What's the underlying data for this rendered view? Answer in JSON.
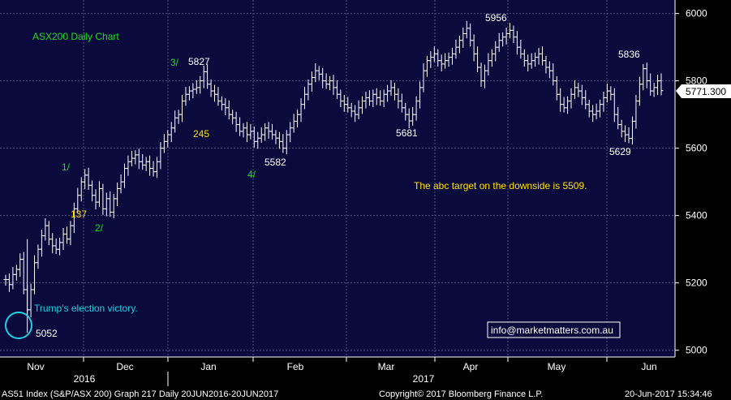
{
  "chart_data": {
    "type": "ohlc",
    "title": "ASX200 Daily Chart",
    "ylim": [
      4980,
      6040
    ],
    "y_ticks": [
      5000,
      5200,
      5400,
      5600,
      5800,
      6000
    ],
    "grid": true,
    "last_price": "5771.300",
    "x_month_labels": [
      "Nov",
      "Dec",
      "Jan",
      "Feb",
      "Mar",
      "Apr",
      "May",
      "Jun"
    ],
    "x_year_labels": [
      "2016",
      "2017"
    ],
    "close_series": [
      5210,
      5195,
      5225,
      5240,
      5270,
      5180,
      5120,
      5180,
      5260,
      5300,
      5340,
      5370,
      5330,
      5310,
      5300,
      5320,
      5345,
      5330,
      5370,
      5420,
      5460,
      5500,
      5520,
      5490,
      5460,
      5440,
      5480,
      5420,
      5450,
      5410,
      5450,
      5480,
      5500,
      5540,
      5560,
      5570,
      5580,
      5560,
      5550,
      5560,
      5540,
      5530,
      5560,
      5600,
      5620,
      5640,
      5660,
      5690,
      5700,
      5740,
      5760,
      5770,
      5775,
      5780,
      5800,
      5827,
      5790,
      5770,
      5760,
      5740,
      5730,
      5720,
      5700,
      5690,
      5670,
      5650,
      5660,
      5640,
      5650,
      5620,
      5630,
      5640,
      5660,
      5650,
      5640,
      5630,
      5620,
      5600,
      5640,
      5660,
      5680,
      5700,
      5730,
      5760,
      5790,
      5810,
      5830,
      5820,
      5800,
      5790,
      5800,
      5780,
      5760,
      5740,
      5730,
      5720,
      5710,
      5700,
      5720,
      5740,
      5750,
      5740,
      5760,
      5750,
      5740,
      5760,
      5770,
      5780,
      5760,
      5740,
      5720,
      5700,
      5681,
      5700,
      5740,
      5780,
      5830,
      5860,
      5870,
      5880,
      5860,
      5850,
      5860,
      5870,
      5880,
      5900,
      5920,
      5940,
      5956,
      5920,
      5880,
      5840,
      5800,
      5830,
      5860,
      5880,
      5900,
      5920,
      5930,
      5940,
      5950,
      5930,
      5900,
      5880,
      5860,
      5850,
      5860,
      5870,
      5880,
      5860,
      5840,
      5830,
      5800,
      5760,
      5730,
      5720,
      5740,
      5760,
      5780,
      5770,
      5750,
      5730,
      5710,
      5700,
      5710,
      5730,
      5750,
      5770,
      5760,
      5700,
      5670,
      5650,
      5640,
      5629,
      5680,
      5740,
      5790,
      5836,
      5800,
      5770,
      5780,
      5800,
      5771
    ],
    "annotations": [
      {
        "text": "5052",
        "color": "#ffffff"
      },
      {
        "text": "1/",
        "color": "#22dd22"
      },
      {
        "text": "137",
        "color": "#ffe000"
      },
      {
        "text": "2/",
        "color": "#22dd22"
      },
      {
        "text": "3/",
        "color": "#22dd22"
      },
      {
        "text": "5827",
        "color": "#ffffff"
      },
      {
        "text": "245",
        "color": "#ffe000"
      },
      {
        "text": "5582",
        "color": "#ffffff"
      },
      {
        "text": "4/",
        "color": "#22dd22"
      },
      {
        "text": "5681",
        "color": "#ffffff"
      },
      {
        "text": "5956",
        "color": "#ffffff"
      },
      {
        "text": "5836",
        "color": "#ffffff"
      },
      {
        "text": "5629",
        "color": "#ffffff"
      },
      {
        "text": "The abc target on the downside is 5509.",
        "color": "#ffe000"
      },
      {
        "text": "Trump's election victory.",
        "color": "#22d0e0"
      },
      {
        "text": "info@marketmatters.com.au",
        "color": "#ffffff"
      }
    ],
    "footer": {
      "left": "AS51 Index (S&P/ASX 200) Graph 217  Daily 20JUN2016-20JUN2017",
      "center": "Copyright© 2017 Bloomberg Finance L.P.",
      "right": "20-Jun-2017 15:34:46"
    },
    "colors": {
      "background": "#0a0a3c",
      "grid": "#50507a",
      "candles": "#ffffff",
      "title": "#22dd22"
    }
  }
}
